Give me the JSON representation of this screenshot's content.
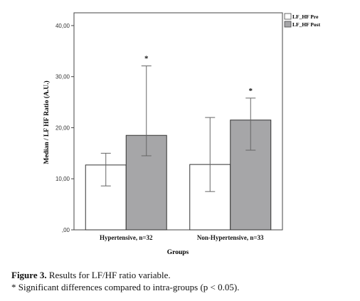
{
  "chart_data": {
    "type": "bar",
    "title": "",
    "xlabel": "Groups",
    "ylabel": "Median / LF HF Ratio (A.U.)",
    "ylim": [
      0,
      42.5
    ],
    "yticks": [
      0,
      10,
      20,
      30,
      40
    ],
    "ytick_labels": [
      ",00",
      "10,00",
      "20,00",
      "30,00",
      "40,00"
    ],
    "categories": [
      "Hypertensive, n=32",
      "Non-Hypertensive, n=33"
    ],
    "series": [
      {
        "name": "LF_HF Pre",
        "color": "#ffffff",
        "values": [
          12.7,
          12.8
        ],
        "err_low": [
          8.6,
          7.5
        ],
        "err_high": [
          15.0,
          22.0
        ]
      },
      {
        "name": "LF_HF Post",
        "color": "#a6a6a8",
        "values": [
          18.5,
          21.5
        ],
        "err_low": [
          14.5,
          15.6
        ],
        "err_high": [
          32.1,
          25.8
        ]
      }
    ],
    "significance_marker": "*",
    "significant": [
      [
        false,
        true
      ],
      [
        false,
        true
      ]
    ],
    "grid": false,
    "legend_position": "top-right"
  },
  "caption": {
    "figure_label": "Figure 3.",
    "figure_text": " Results for LF/HF ratio variable.",
    "note": "* Significant differences compared to intra-groups (p < 0.05)."
  }
}
